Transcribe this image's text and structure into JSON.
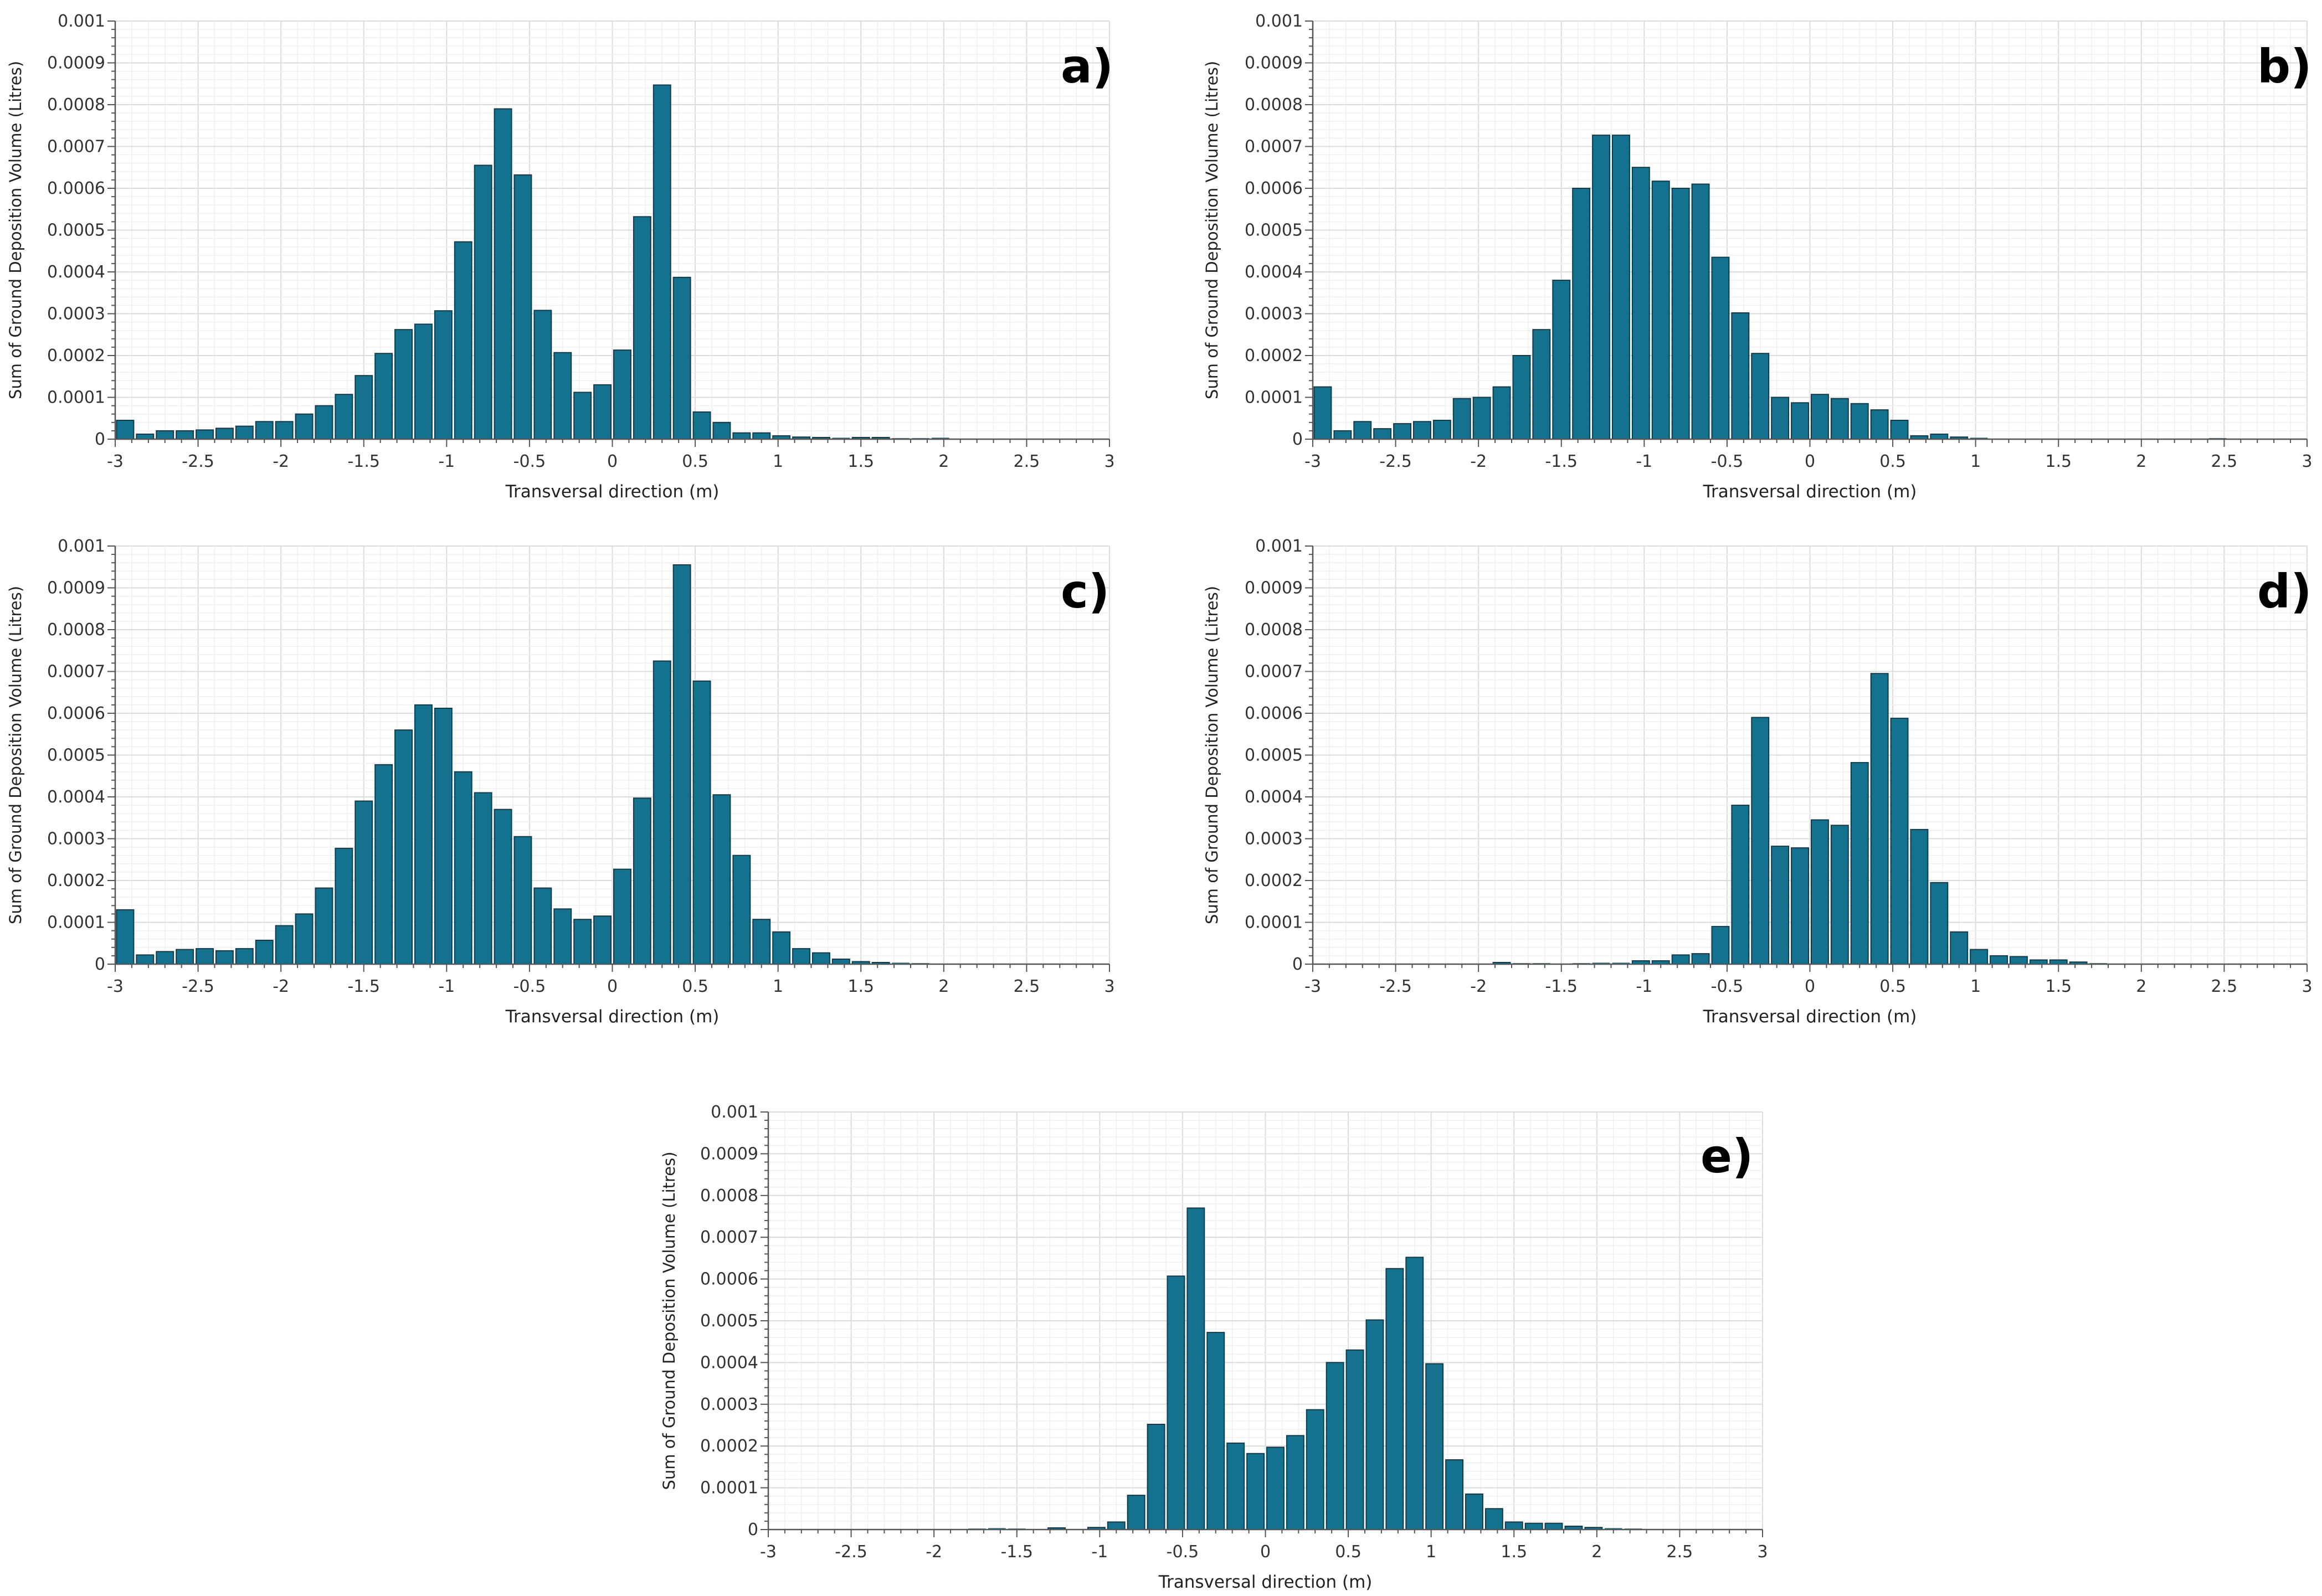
{
  "figure": {
    "background": "#ffffff",
    "bar_color": "#15728f",
    "bar_edge_color": "#0b3d4f"
  },
  "chart_data": [
    {
      "id": "a",
      "type": "bar",
      "panel_label": "a)",
      "xlabel": "Transversal direction (m)",
      "ylabel": "Sum of Ground Deposition Volume (Litres)",
      "xlim": [
        -3,
        3
      ],
      "ylim": [
        0,
        0.001
      ],
      "xticks": [
        -3,
        -2.5,
        -2,
        -1.5,
        -1,
        -0.5,
        0,
        0.5,
        1,
        1.5,
        2,
        2.5,
        3
      ],
      "xtick_labels": [
        "-3",
        "-2.5",
        "-2",
        "-1.5",
        "-1",
        "-0.5",
        "0",
        "0.5",
        "1",
        "1.5",
        "2",
        "2.5",
        "3"
      ],
      "yticks": [
        0,
        0.0001,
        0.0002,
        0.0003,
        0.0004,
        0.0005,
        0.0006,
        0.0007,
        0.0008,
        0.0009,
        0.001
      ],
      "ytick_labels": [
        "0",
        "0.0001",
        "0.0002",
        "0.0003",
        "0.0004",
        "0.0005",
        "0.0006",
        "0.0007",
        "0.0008",
        "0.0009",
        "0.001"
      ],
      "grid": true,
      "bin_width": 0.12,
      "x": [
        -2.94,
        -2.82,
        -2.7,
        -2.58,
        -2.46,
        -2.34,
        -2.22,
        -2.1,
        -1.98,
        -1.86,
        -1.74,
        -1.62,
        -1.5,
        -1.38,
        -1.26,
        -1.14,
        -1.02,
        -0.9,
        -0.78,
        -0.66,
        -0.54,
        -0.42,
        -0.3,
        -0.18,
        -0.06,
        0.06,
        0.18,
        0.3,
        0.42,
        0.54,
        0.66,
        0.78,
        0.9,
        1.02,
        1.14,
        1.26,
        1.38,
        1.5,
        1.62,
        1.74,
        1.86,
        1.98,
        2.1
      ],
      "values": [
        4.5e-05,
        1.2e-05,
        2e-05,
        2e-05,
        2.2e-05,
        2.6e-05,
        3.1e-05,
        4.2e-05,
        4.2e-05,
        6e-05,
        8e-05,
        0.000107,
        0.000152,
        0.000205,
        0.000262,
        0.000275,
        0.000307,
        0.000472,
        0.000655,
        0.00079,
        0.000632,
        0.000308,
        0.000207,
        0.000112,
        0.00013,
        0.000213,
        0.000532,
        0.000847,
        0.000387,
        6.5e-05,
        4e-05,
        1.5e-05,
        1.5e-05,
        8e-06,
        5e-06,
        4e-06,
        3e-06,
        4e-06,
        4e-06,
        2e-06,
        2e-06,
        3e-06,
        1e-06
      ]
    },
    {
      "id": "b",
      "type": "bar",
      "panel_label": "b)",
      "xlabel": "Transversal direction (m)",
      "ylabel": "Sum of Ground Deposition Volume (Litres)",
      "xlim": [
        -3,
        3
      ],
      "ylim": [
        0,
        0.001
      ],
      "xticks": [
        -3,
        -2.5,
        -2,
        -1.5,
        -1,
        -0.5,
        0,
        0.5,
        1,
        1.5,
        2,
        2.5,
        3
      ],
      "xtick_labels": [
        "-3",
        "-2.5",
        "-2",
        "-1.5",
        "-1",
        "-0.5",
        "0",
        "0.5",
        "1",
        "1.5",
        "2",
        "2.5",
        "3"
      ],
      "yticks": [
        0,
        0.0001,
        0.0002,
        0.0003,
        0.0004,
        0.0005,
        0.0006,
        0.0007,
        0.0008,
        0.0009,
        0.001
      ],
      "ytick_labels": [
        "0",
        "0.0001",
        "0.0002",
        "0.0003",
        "0.0004",
        "0.0005",
        "0.0006",
        "0.0007",
        "0.0008",
        "0.0009",
        "0.001"
      ],
      "grid": true,
      "bin_width": 0.12,
      "x": [
        -2.94,
        -2.82,
        -2.7,
        -2.58,
        -2.46,
        -2.34,
        -2.22,
        -2.1,
        -1.98,
        -1.86,
        -1.74,
        -1.62,
        -1.5,
        -1.38,
        -1.26,
        -1.14,
        -1.02,
        -0.9,
        -0.78,
        -0.66,
        -0.54,
        -0.42,
        -0.3,
        -0.18,
        -0.06,
        0.06,
        0.18,
        0.3,
        0.42,
        0.54,
        0.66,
        0.78,
        0.9,
        1.02,
        1.14,
        1.26,
        1.38,
        1.5,
        1.62,
        1.74,
        1.86,
        1.98,
        2.1,
        2.22,
        2.34,
        2.46,
        2.58
      ],
      "values": [
        0.000125,
        2e-05,
        4.2e-05,
        2.5e-05,
        3.7e-05,
        4.2e-05,
        4.5e-05,
        9.7e-05,
        0.0001,
        0.000125,
        0.0002,
        0.000262,
        0.00038,
        0.0006,
        0.000727,
        0.000727,
        0.00065,
        0.000617,
        0.0006,
        0.00061,
        0.000435,
        0.000302,
        0.000205,
        0.0001,
        8.7e-05,
        0.000107,
        9.7e-05,
        8.5e-05,
        7e-05,
        4.5e-05,
        8e-06,
        1.2e-05,
        5e-06,
        3e-06,
        1e-06,
        1e-06,
        1e-06,
        1e-06,
        1e-06,
        1e-06,
        1e-06,
        1e-06,
        1e-06,
        1e-06,
        1e-06,
        2e-06,
        1e-06
      ]
    },
    {
      "id": "c",
      "type": "bar",
      "panel_label": "c)",
      "xlabel": "Transversal direction (m)",
      "ylabel": "Sum of Ground Deposition Volume (Litres)",
      "xlim": [
        -3,
        3
      ],
      "ylim": [
        0,
        0.001
      ],
      "xticks": [
        -3,
        -2.5,
        -2,
        -1.5,
        -1,
        -0.5,
        0,
        0.5,
        1,
        1.5,
        2,
        2.5,
        3
      ],
      "xtick_labels": [
        "-3",
        "-2.5",
        "-2",
        "-1.5",
        "-1",
        "-0.5",
        "0",
        "0.5",
        "1",
        "1.5",
        "2",
        "2.5",
        "3"
      ],
      "yticks": [
        0,
        0.0001,
        0.0002,
        0.0003,
        0.0004,
        0.0005,
        0.0006,
        0.0007,
        0.0008,
        0.0009,
        0.001
      ],
      "ytick_labels": [
        "0",
        "0.0001",
        "0.0002",
        "0.0003",
        "0.0004",
        "0.0005",
        "0.0006",
        "0.0007",
        "0.0008",
        "0.0009",
        "0.001"
      ],
      "grid": true,
      "bin_width": 0.12,
      "x": [
        -2.94,
        -2.82,
        -2.7,
        -2.58,
        -2.46,
        -2.34,
        -2.22,
        -2.1,
        -1.98,
        -1.86,
        -1.74,
        -1.62,
        -1.5,
        -1.38,
        -1.26,
        -1.14,
        -1.02,
        -0.9,
        -0.78,
        -0.66,
        -0.54,
        -0.42,
        -0.3,
        -0.18,
        -0.06,
        0.06,
        0.18,
        0.3,
        0.42,
        0.54,
        0.66,
        0.78,
        0.9,
        1.02,
        1.14,
        1.26,
        1.38,
        1.5,
        1.62,
        1.74,
        1.86
      ],
      "values": [
        0.00013,
        2.2e-05,
        3e-05,
        3.5e-05,
        3.7e-05,
        3.2e-05,
        3.7e-05,
        5.7e-05,
        9.2e-05,
        0.00012,
        0.000182,
        0.000277,
        0.00039,
        0.000477,
        0.00056,
        0.00062,
        0.000612,
        0.00046,
        0.00041,
        0.00037,
        0.000305,
        0.000182,
        0.000132,
        0.000107,
        0.000115,
        0.000227,
        0.000397,
        0.000725,
        0.000955,
        0.000677,
        0.000405,
        0.00026,
        0.000107,
        7.7e-05,
        3.7e-05,
        2.7e-05,
        1.2e-05,
        6e-06,
        4e-06,
        3e-06,
        2e-06
      ]
    },
    {
      "id": "d",
      "type": "bar",
      "panel_label": "d)",
      "xlabel": "Transversal direction (m)",
      "ylabel": "Sum of Ground Deposition Volume (Litres)",
      "xlim": [
        -3,
        3
      ],
      "ylim": [
        0,
        0.001
      ],
      "xticks": [
        -3,
        -2.5,
        -2,
        -1.5,
        -1,
        -0.5,
        0,
        0.5,
        1,
        1.5,
        2,
        2.5,
        3
      ],
      "xtick_labels": [
        "-3",
        "-2.5",
        "-2",
        "-1.5",
        "-1",
        "-0.5",
        "0",
        "0.5",
        "1",
        "1.5",
        "2",
        "2.5",
        "3"
      ],
      "yticks": [
        0,
        0.0001,
        0.0002,
        0.0003,
        0.0004,
        0.0005,
        0.0006,
        0.0007,
        0.0008,
        0.0009,
        0.001
      ],
      "ytick_labels": [
        "0",
        "0.0001",
        "0.0002",
        "0.0003",
        "0.0004",
        "0.0005",
        "0.0006",
        "0.0007",
        "0.0008",
        "0.0009",
        "0.001"
      ],
      "grid": true,
      "bin_width": 0.12,
      "x": [
        -1.86,
        -1.74,
        -1.62,
        -1.5,
        -1.38,
        -1.26,
        -1.14,
        -1.02,
        -0.9,
        -0.78,
        -0.66,
        -0.54,
        -0.42,
        -0.3,
        -0.18,
        -0.06,
        0.06,
        0.18,
        0.3,
        0.42,
        0.54,
        0.66,
        0.78,
        0.9,
        1.02,
        1.14,
        1.26,
        1.38,
        1.5,
        1.62,
        1.74,
        1.86
      ],
      "values": [
        4e-06,
        2e-06,
        2e-06,
        1e-06,
        2e-06,
        3e-06,
        3e-06,
        8e-06,
        8e-06,
        2.2e-05,
        2.5e-05,
        9e-05,
        0.00038,
        0.00059,
        0.000282,
        0.000278,
        0.000345,
        0.000332,
        0.000482,
        0.000695,
        0.000588,
        0.000322,
        0.000195,
        7.7e-05,
        3.5e-05,
        2e-05,
        1.8e-05,
        1e-05,
        1e-05,
        5e-06,
        2e-06,
        1e-06
      ]
    },
    {
      "id": "e",
      "type": "bar",
      "panel_label": "e)",
      "xlabel": "Transversal direction (m)",
      "ylabel": "Sum of Ground Deposition Volume (Litres)",
      "xlim": [
        -3,
        3
      ],
      "ylim": [
        0,
        0.001
      ],
      "xticks": [
        -3,
        -2.5,
        -2,
        -1.5,
        -1,
        -0.5,
        0,
        0.5,
        1,
        1.5,
        2,
        2.5,
        3
      ],
      "xtick_labels": [
        "-3",
        "-2.5",
        "-2",
        "-1.5",
        "-1",
        "-0.5",
        "0",
        "0.5",
        "1",
        "1.5",
        "2",
        "2.5",
        "3"
      ],
      "yticks": [
        0,
        0.0001,
        0.0002,
        0.0003,
        0.0004,
        0.0005,
        0.0006,
        0.0007,
        0.0008,
        0.0009,
        0.001
      ],
      "ytick_labels": [
        "0",
        "0.0001",
        "0.0002",
        "0.0003",
        "0.0004",
        "0.0005",
        "0.0006",
        "0.0007",
        "0.0008",
        "0.0009",
        "0.001"
      ],
      "grid": true,
      "bin_width": 0.12,
      "x": [
        -1.74,
        -1.62,
        -1.5,
        -1.38,
        -1.26,
        -1.14,
        -1.02,
        -0.9,
        -0.78,
        -0.66,
        -0.54,
        -0.42,
        -0.3,
        -0.18,
        -0.06,
        0.06,
        0.18,
        0.3,
        0.42,
        0.54,
        0.66,
        0.78,
        0.9,
        1.02,
        1.14,
        1.26,
        1.38,
        1.5,
        1.62,
        1.74,
        1.86,
        1.98,
        2.1,
        2.22
      ],
      "values": [
        2e-06,
        3e-06,
        2e-06,
        1e-06,
        4e-06,
        1e-06,
        5e-06,
        1.8e-05,
        8.2e-05,
        0.000252,
        0.000607,
        0.00077,
        0.000472,
        0.000207,
        0.000182,
        0.000197,
        0.000225,
        0.000287,
        0.0004,
        0.00043,
        0.000502,
        0.000625,
        0.000652,
        0.000397,
        0.000167,
        8.5e-05,
        5e-05,
        1.8e-05,
        1.5e-05,
        1.5e-05,
        8e-06,
        5e-06,
        3e-06,
        2e-06
      ]
    }
  ]
}
